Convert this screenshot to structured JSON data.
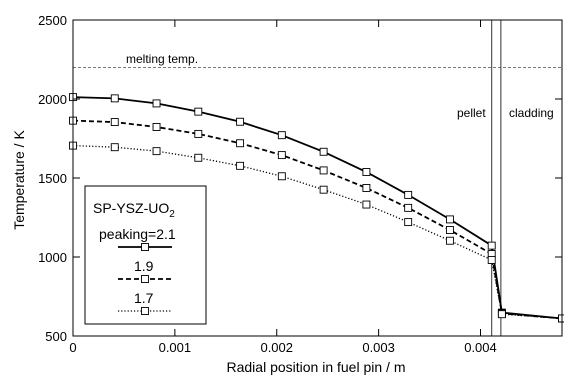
{
  "chart_data": {
    "type": "line",
    "xlabel": "Radial position in fuel pin / m",
    "ylabel": "Temperature / K",
    "xlim": [
      0,
      0.0048
    ],
    "ylim": [
      500,
      2500
    ],
    "x_ticks": [
      "0",
      "0.001",
      "0.002",
      "0.003",
      "0.004"
    ],
    "x_tick_values": [
      0,
      0.001,
      0.002,
      0.003,
      0.004
    ],
    "y_ticks": [
      "500",
      "1000",
      "1500",
      "2000",
      "2500"
    ],
    "y_tick_values": [
      500,
      1000,
      1500,
      2000,
      2500
    ],
    "grid": false,
    "annotations": {
      "melting_label": "melting temp.",
      "melting_value": 2200,
      "pellet_label": "pellet",
      "cladding_label": "cladding",
      "pellet_boundary": 0.00411,
      "cladding_boundary": 0.0042
    },
    "legend": {
      "title": "SP-YSZ-UO",
      "title_sub": "2",
      "position": "lower-left"
    },
    "series": [
      {
        "name": "peaking=2.1",
        "line_style": "solid",
        "x": [
          0,
          0.00041,
          0.00082,
          0.00123,
          0.00164,
          0.00205,
          0.00246,
          0.00288,
          0.00329,
          0.0037,
          0.00411,
          0.00421,
          0.0048
        ],
        "y": [
          2012,
          2004,
          1972,
          1920,
          1856,
          1771,
          1666,
          1538,
          1393,
          1238,
          1072,
          648,
          611
        ]
      },
      {
        "name": "1.9",
        "line_style": "dashed",
        "x": [
          0,
          0.00041,
          0.00082,
          0.00123,
          0.00164,
          0.00205,
          0.00246,
          0.00288,
          0.00329,
          0.0037,
          0.00411,
          0.00421,
          0.0048
        ],
        "y": [
          1863,
          1854,
          1823,
          1779,
          1720,
          1645,
          1548,
          1437,
          1311,
          1171,
          1019,
          643,
          611
        ]
      },
      {
        "name": "1.7",
        "line_style": "dotted",
        "x": [
          0,
          0.00041,
          0.00082,
          0.00123,
          0.00164,
          0.00205,
          0.00246,
          0.00288,
          0.00329,
          0.0037,
          0.00411,
          0.00421,
          0.0048
        ],
        "y": [
          1705,
          1695,
          1670,
          1628,
          1577,
          1511,
          1426,
          1332,
          1221,
          1103,
          981,
          638,
          611
        ]
      }
    ]
  }
}
